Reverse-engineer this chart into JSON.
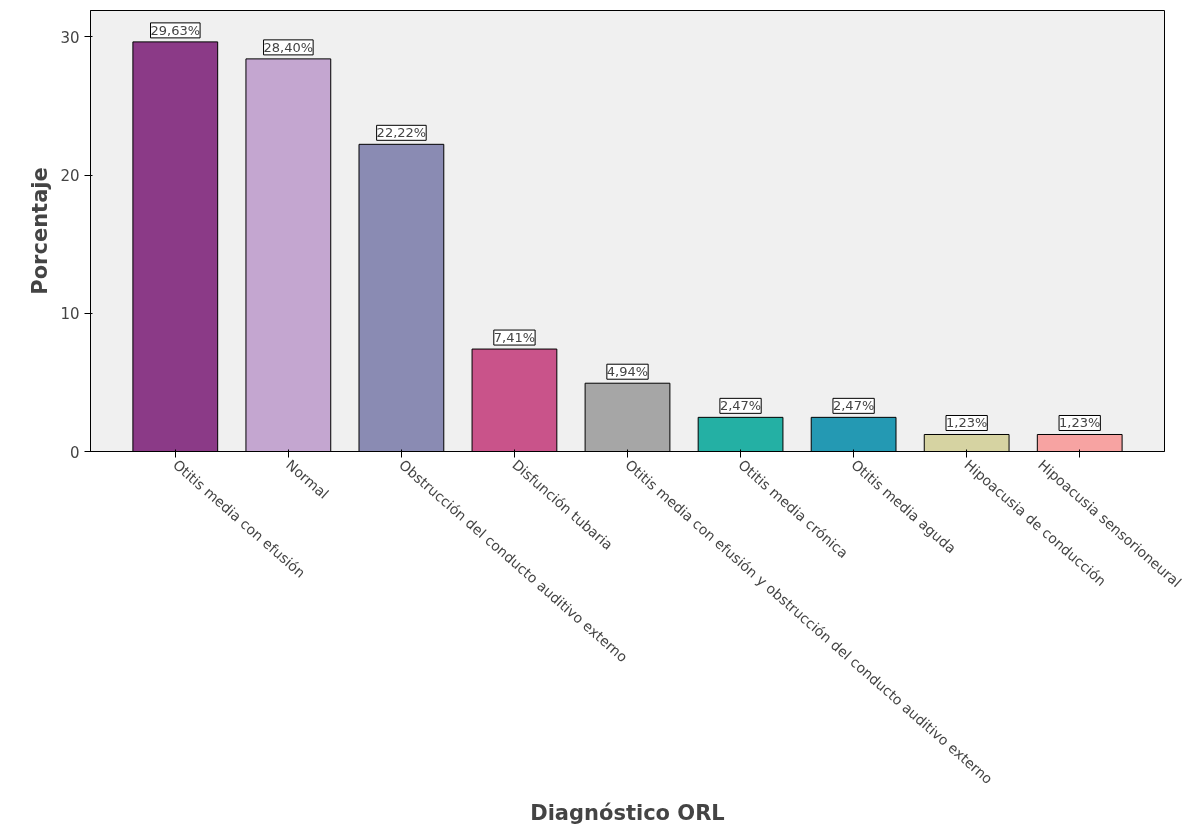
{
  "chart_data": {
    "type": "bar",
    "xlabel": "Diagnóstico ORL",
    "ylabel": "Porcentaje",
    "categories": [
      "Otitis media con efusión",
      "Normal",
      "Obstrucción del conducto auditivo externo",
      "Disfunción tubaria",
      "Otitis media con efusión y obstrucción del conducto auditivo externo",
      "Otitis media crónica",
      "Otitis media aguda",
      "Hipoacusia de conducción",
      "Hipoacusia sensorioneural"
    ],
    "values": [
      29.63,
      28.4,
      22.22,
      7.41,
      4.94,
      2.47,
      2.47,
      1.23,
      1.23
    ],
    "colors": [
      "#8b3a87",
      "#c4a6d0",
      "#8a8bb3",
      "#c9538a",
      "#a6a6a6",
      "#24b0a4",
      "#2499b3",
      "#d6d3a2",
      "#f7a3a2"
    ],
    "value_labels": [
      "29,63%",
      "28,40%",
      "22,22%",
      "7,41%",
      "4,94%",
      "2,47%",
      "2,47%",
      "1,23%",
      "1,23%"
    ],
    "ylim": [
      0,
      31.9
    ],
    "yticks": [
      0,
      10,
      20,
      30
    ],
    "grid": false
  }
}
